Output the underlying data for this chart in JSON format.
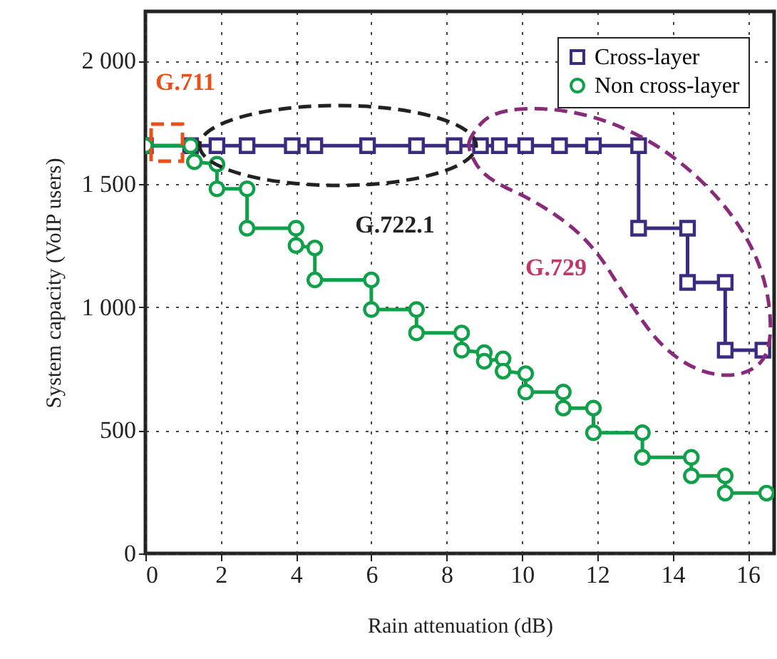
{
  "chart_data": {
    "type": "line",
    "xlabel": "Rain attenuation (dB)",
    "ylabel": "System capacity (VoIP users)",
    "xlim": [
      0,
      16.7
    ],
    "ylim": [
      0,
      2200
    ],
    "xticks": [
      0,
      2,
      4,
      6,
      8,
      10,
      12,
      14,
      16
    ],
    "yticks": [
      0,
      500,
      {
        "value": 1000,
        "label": "1 000"
      },
      {
        "value": 1500,
        "label": "1 500"
      },
      {
        "value": 2000,
        "label": "2 000"
      }
    ],
    "grid": true,
    "legend": "top right",
    "line_style": "solid",
    "annotations": [
      "G.711",
      "G.722.1",
      "G.729"
    ],
    "series": [
      {
        "name": "Cross-layer",
        "color": "#3c2a80",
        "marker": "square",
        "x": [
          0,
          1.2,
          1.9,
          2.7,
          3.9,
          4.5,
          5.9,
          7.2,
          8.2,
          8.9,
          9.4,
          10.1,
          11,
          11.9,
          13.1,
          13.1,
          14.4,
          14.4,
          15.4,
          15.4,
          16.4
        ],
        "values": [
          1655,
          1655,
          1655,
          1655,
          1655,
          1655,
          1655,
          1655,
          1655,
          1655,
          1655,
          1655,
          1655,
          1655,
          1655,
          1320,
          1320,
          1100,
          1100,
          825,
          825
        ]
      },
      {
        "name": "Non cross-layer",
        "color": "#10a04a",
        "marker": "circle",
        "x": [
          0,
          1.2,
          1.3,
          1.9,
          1.9,
          2.7,
          2.7,
          4,
          4,
          4.5,
          4.5,
          6,
          6,
          7.2,
          7.2,
          8.4,
          8.4,
          9,
          9,
          9.5,
          9.5,
          10.1,
          10.1,
          11.1,
          11.1,
          11.9,
          11.9,
          13.2,
          13.2,
          14.5,
          14.5,
          15.4,
          15.4,
          16.5
        ],
        "values": [
          1655,
          1655,
          1590,
          1580,
          1480,
          1480,
          1320,
          1320,
          1250,
          1240,
          1110,
          1110,
          990,
          990,
          895,
          895,
          825,
          815,
          780,
          790,
          740,
          730,
          655,
          655,
          590,
          590,
          490,
          490,
          390,
          390,
          315,
          315,
          245,
          245
        ]
      }
    ]
  }
}
